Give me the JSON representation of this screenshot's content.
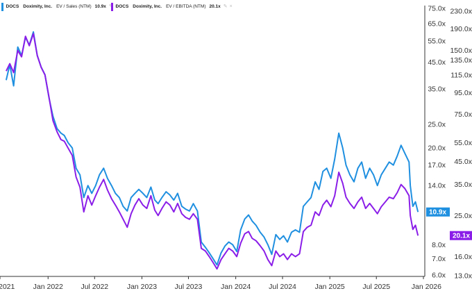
{
  "legend": [
    {
      "ticker": "DOCS",
      "name": "Doximity, Inc.",
      "metric": "EV / Sales (NTM)",
      "value": "10.9x",
      "color": "#1f8fe0",
      "close_icon": "×",
      "edit_icon": "✎"
    },
    {
      "ticker": "DOCS",
      "name": "Doximity, Inc.",
      "metric": "EV / EBITDA (NTM)",
      "value": "20.1x",
      "color": "#8a1ee8",
      "close_icon": "×",
      "edit_icon": "✎"
    }
  ],
  "chart_data": {
    "type": "line",
    "x_ticks": [
      "2021",
      "Jan 2022",
      "Jul 2022",
      "Jan 2023",
      "Jul 2023",
      "Jan 2024",
      "Jul 2024",
      "Jan 2025",
      "Jul 2025",
      "Jan 2026"
    ],
    "left_axis": {
      "scale": "log",
      "range": [
        6.0,
        75.0
      ],
      "ticks": [
        "75.0x",
        "65.0x",
        "55.0x",
        "45.0x",
        "35.0x",
        "25.0x",
        "20.0x",
        "17.0x",
        "14.0x",
        "8.0x",
        "7.0x",
        "6.0x"
      ]
    },
    "right_axis": {
      "scale": "log",
      "range": [
        13.0,
        230.0
      ],
      "ticks": [
        "230.0x",
        "190.0x",
        "150.0x",
        "135.0x",
        "115.0x",
        "95.0x",
        "75.0x",
        "55.0x",
        "45.0x",
        "35.0x",
        "25.0x",
        "16.0x",
        "13.0x"
      ]
    },
    "series": [
      {
        "name": "DOCS Doximity, Inc. EV / Sales (NTM)",
        "axis": "left",
        "color": "#1f8fe0",
        "last_label": "10.9x",
        "points": [
          [
            "2021-07-22",
            38.0
          ],
          [
            "2021-08-05",
            44.0
          ],
          [
            "2021-08-20",
            36.0
          ],
          [
            "2021-09-05",
            52.0
          ],
          [
            "2021-09-20",
            48.0
          ],
          [
            "2021-10-05",
            57.0
          ],
          [
            "2021-10-20",
            53.0
          ],
          [
            "2021-11-05",
            60.0
          ],
          [
            "2021-11-20",
            48.0
          ],
          [
            "2021-12-05",
            43.0
          ],
          [
            "2021-12-20",
            40.0
          ],
          [
            "2022-01-05",
            32.0
          ],
          [
            "2022-01-20",
            27.0
          ],
          [
            "2022-02-05",
            24.0
          ],
          [
            "2022-02-20",
            23.0
          ],
          [
            "2022-03-05",
            22.5
          ],
          [
            "2022-03-20",
            21.0
          ],
          [
            "2022-04-05",
            20.0
          ],
          [
            "2022-04-20",
            16.5
          ],
          [
            "2022-05-05",
            15.5
          ],
          [
            "2022-05-20",
            12.5
          ],
          [
            "2022-06-05",
            14.0
          ],
          [
            "2022-06-20",
            13.0
          ],
          [
            "2022-07-05",
            14.0
          ],
          [
            "2022-07-20",
            15.5
          ],
          [
            "2022-08-05",
            16.5
          ],
          [
            "2022-08-20",
            15.0
          ],
          [
            "2022-09-05",
            14.0
          ],
          [
            "2022-09-20",
            13.0
          ],
          [
            "2022-10-05",
            12.5
          ],
          [
            "2022-10-20",
            11.5
          ],
          [
            "2022-11-05",
            11.0
          ],
          [
            "2022-11-20",
            12.5
          ],
          [
            "2022-12-05",
            13.0
          ],
          [
            "2022-12-20",
            13.5
          ],
          [
            "2023-01-05",
            13.0
          ],
          [
            "2023-01-20",
            12.5
          ],
          [
            "2023-02-05",
            13.8
          ],
          [
            "2023-02-20",
            12.2
          ],
          [
            "2023-03-05",
            11.8
          ],
          [
            "2023-03-20",
            12.5
          ],
          [
            "2023-04-05",
            13.2
          ],
          [
            "2023-04-20",
            12.8
          ],
          [
            "2023-05-05",
            12.2
          ],
          [
            "2023-05-20",
            13.0
          ],
          [
            "2023-06-05",
            11.5
          ],
          [
            "2023-06-20",
            11.2
          ],
          [
            "2023-07-05",
            11.0
          ],
          [
            "2023-07-20",
            11.8
          ],
          [
            "2023-08-05",
            11.0
          ],
          [
            "2023-08-20",
            8.2
          ],
          [
            "2023-09-05",
            7.8
          ],
          [
            "2023-09-20",
            7.4
          ],
          [
            "2023-10-05",
            7.0
          ],
          [
            "2023-10-20",
            6.6
          ],
          [
            "2023-11-05",
            7.4
          ],
          [
            "2023-11-20",
            7.9
          ],
          [
            "2023-12-05",
            8.2
          ],
          [
            "2023-12-20",
            8.0
          ],
          [
            "2024-01-05",
            7.5
          ],
          [
            "2024-01-20",
            9.2
          ],
          [
            "2024-02-05",
            10.2
          ],
          [
            "2024-02-20",
            10.6
          ],
          [
            "2024-03-05",
            10.0
          ],
          [
            "2024-03-20",
            9.6
          ],
          [
            "2024-04-05",
            9.0
          ],
          [
            "2024-04-20",
            8.6
          ],
          [
            "2024-05-05",
            8.0
          ],
          [
            "2024-05-20",
            7.3
          ],
          [
            "2024-06-05",
            8.8
          ],
          [
            "2024-06-20",
            8.4
          ],
          [
            "2024-07-05",
            8.7
          ],
          [
            "2024-07-20",
            8.2
          ],
          [
            "2024-08-05",
            9.0
          ],
          [
            "2024-08-20",
            9.2
          ],
          [
            "2024-09-05",
            9.0
          ],
          [
            "2024-09-20",
            11.5
          ],
          [
            "2024-10-05",
            12.0
          ],
          [
            "2024-10-20",
            12.5
          ],
          [
            "2024-11-05",
            14.5
          ],
          [
            "2024-11-20",
            13.5
          ],
          [
            "2024-12-05",
            16.0
          ],
          [
            "2024-12-20",
            16.5
          ],
          [
            "2025-01-05",
            15.0
          ],
          [
            "2025-01-20",
            18.0
          ],
          [
            "2025-02-05",
            23.0
          ],
          [
            "2025-02-20",
            20.0
          ],
          [
            "2025-03-05",
            17.0
          ],
          [
            "2025-03-20",
            15.5
          ],
          [
            "2025-04-05",
            14.5
          ],
          [
            "2025-04-20",
            16.5
          ],
          [
            "2025-05-05",
            17.5
          ],
          [
            "2025-05-20",
            15.0
          ],
          [
            "2025-06-05",
            16.5
          ],
          [
            "2025-06-20",
            15.5
          ],
          [
            "2025-07-05",
            14.0
          ],
          [
            "2025-07-20",
            15.5
          ],
          [
            "2025-08-05",
            16.5
          ],
          [
            "2025-08-20",
            17.5
          ],
          [
            "2025-09-05",
            17.0
          ],
          [
            "2025-09-20",
            18.5
          ],
          [
            "2025-10-05",
            20.5
          ],
          [
            "2025-10-20",
            19.0
          ],
          [
            "2025-11-05",
            17.5
          ],
          [
            "2025-11-10",
            14.0
          ],
          [
            "2025-11-20",
            11.5
          ],
          [
            "2025-11-30",
            12.0
          ],
          [
            "2025-12-10",
            10.9
          ]
        ]
      },
      {
        "name": "DOCS Doximity, Inc. EV / EBITDA (NTM)",
        "axis": "right",
        "color": "#8a1ee8",
        "last_label": "20.1x",
        "points": [
          [
            "2021-07-22",
            120.0
          ],
          [
            "2021-08-05",
            130.0
          ],
          [
            "2021-08-20",
            118.0
          ],
          [
            "2021-09-05",
            150.0
          ],
          [
            "2021-09-20",
            140.0
          ],
          [
            "2021-10-05",
            175.0
          ],
          [
            "2021-10-20",
            158.0
          ],
          [
            "2021-11-05",
            180.0
          ],
          [
            "2021-11-20",
            142.0
          ],
          [
            "2021-12-05",
            125.0
          ],
          [
            "2021-12-20",
            115.0
          ],
          [
            "2022-01-05",
            90.0
          ],
          [
            "2022-01-20",
            70.0
          ],
          [
            "2022-02-05",
            62.0
          ],
          [
            "2022-02-20",
            57.0
          ],
          [
            "2022-03-05",
            56.0
          ],
          [
            "2022-03-20",
            52.0
          ],
          [
            "2022-04-05",
            48.0
          ],
          [
            "2022-04-20",
            38.0
          ],
          [
            "2022-05-05",
            34.0
          ],
          [
            "2022-05-20",
            26.0
          ],
          [
            "2022-06-05",
            31.0
          ],
          [
            "2022-06-20",
            28.0
          ],
          [
            "2022-07-05",
            31.0
          ],
          [
            "2022-07-20",
            34.0
          ],
          [
            "2022-08-05",
            37.0
          ],
          [
            "2022-08-20",
            33.0
          ],
          [
            "2022-09-05",
            30.0
          ],
          [
            "2022-09-20",
            28.0
          ],
          [
            "2022-10-05",
            26.0
          ],
          [
            "2022-10-20",
            24.0
          ],
          [
            "2022-11-05",
            22.0
          ],
          [
            "2022-11-20",
            25.5
          ],
          [
            "2022-12-05",
            28.0
          ],
          [
            "2022-12-20",
            30.0
          ],
          [
            "2023-01-05",
            28.0
          ],
          [
            "2023-01-20",
            27.0
          ],
          [
            "2023-02-05",
            31.0
          ],
          [
            "2023-02-20",
            26.5
          ],
          [
            "2023-03-05",
            25.0
          ],
          [
            "2023-03-20",
            27.0
          ],
          [
            "2023-04-05",
            29.0
          ],
          [
            "2023-04-20",
            28.0
          ],
          [
            "2023-05-05",
            26.0
          ],
          [
            "2023-05-20",
            28.5
          ],
          [
            "2023-06-05",
            25.5
          ],
          [
            "2023-06-20",
            24.5
          ],
          [
            "2023-07-05",
            24.0
          ],
          [
            "2023-07-20",
            25.5
          ],
          [
            "2023-08-05",
            24.0
          ],
          [
            "2023-08-20",
            17.5
          ],
          [
            "2023-09-05",
            17.0
          ],
          [
            "2023-09-20",
            16.0
          ],
          [
            "2023-10-05",
            15.0
          ],
          [
            "2023-10-20",
            14.0
          ],
          [
            "2023-11-05",
            15.5
          ],
          [
            "2023-11-20",
            16.5
          ],
          [
            "2023-12-05",
            17.5
          ],
          [
            "2023-12-20",
            17.0
          ],
          [
            "2024-01-05",
            16.0
          ],
          [
            "2024-01-20",
            18.5
          ],
          [
            "2024-02-05",
            20.5
          ],
          [
            "2024-02-20",
            21.0
          ],
          [
            "2024-03-05",
            19.5
          ],
          [
            "2024-03-20",
            19.0
          ],
          [
            "2024-04-05",
            18.0
          ],
          [
            "2024-04-20",
            17.0
          ],
          [
            "2024-05-05",
            15.5
          ],
          [
            "2024-05-20",
            14.5
          ],
          [
            "2024-06-05",
            17.0
          ],
          [
            "2024-06-20",
            16.0
          ],
          [
            "2024-07-05",
            16.5
          ],
          [
            "2024-07-20",
            15.5
          ],
          [
            "2024-08-05",
            16.5
          ],
          [
            "2024-08-20",
            16.0
          ],
          [
            "2024-09-05",
            16.5
          ],
          [
            "2024-09-20",
            21.0
          ],
          [
            "2024-10-05",
            22.0
          ],
          [
            "2024-10-20",
            22.5
          ],
          [
            "2024-11-05",
            26.0
          ],
          [
            "2024-11-20",
            25.0
          ],
          [
            "2024-12-05",
            28.0
          ],
          [
            "2024-12-20",
            29.5
          ],
          [
            "2025-01-05",
            27.5
          ],
          [
            "2025-01-20",
            31.0
          ],
          [
            "2025-02-05",
            40.0
          ],
          [
            "2025-02-20",
            35.5
          ],
          [
            "2025-03-05",
            30.5
          ],
          [
            "2025-03-20",
            28.5
          ],
          [
            "2025-04-05",
            27.0
          ],
          [
            "2025-04-20",
            29.0
          ],
          [
            "2025-05-05",
            30.5
          ],
          [
            "2025-05-20",
            27.0
          ],
          [
            "2025-06-05",
            28.5
          ],
          [
            "2025-06-20",
            27.0
          ],
          [
            "2025-07-05",
            25.5
          ],
          [
            "2025-07-20",
            27.5
          ],
          [
            "2025-08-05",
            29.0
          ],
          [
            "2025-08-20",
            30.5
          ],
          [
            "2025-09-05",
            30.0
          ],
          [
            "2025-09-20",
            32.0
          ],
          [
            "2025-10-05",
            35.0
          ],
          [
            "2025-10-20",
            33.5
          ],
          [
            "2025-11-05",
            31.0
          ],
          [
            "2025-11-10",
            25.0
          ],
          [
            "2025-11-20",
            21.5
          ],
          [
            "2025-11-30",
            22.5
          ],
          [
            "2025-12-10",
            20.1
          ]
        ]
      }
    ],
    "grid": false,
    "legend_position": "top-left"
  }
}
